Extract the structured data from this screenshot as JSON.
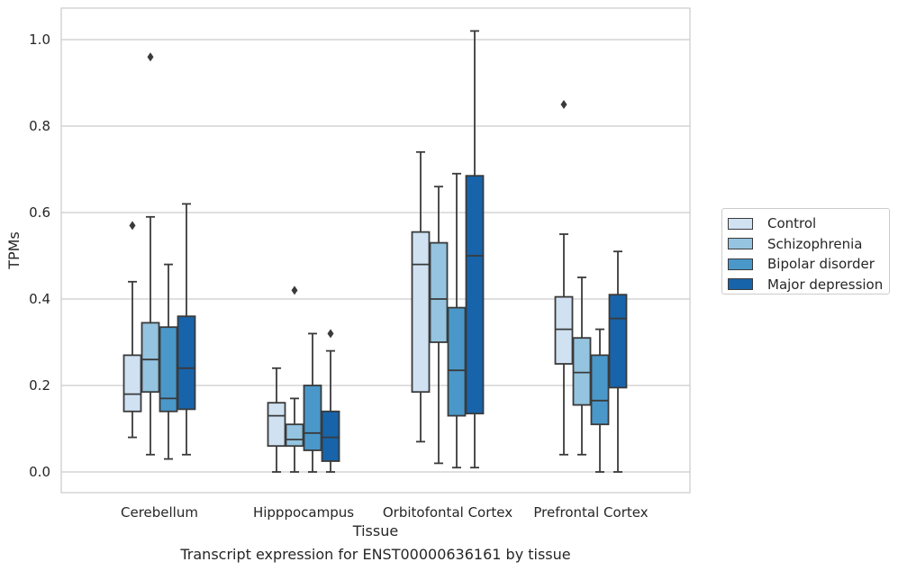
{
  "chart_data": {
    "type": "box",
    "caption": "Transcript expression for ENST00000636161 by tissue",
    "xlabel": "Tissue",
    "ylabel": "TPMs",
    "ylim": [
      -0.05,
      1.07
    ],
    "yticks": [
      "0.0",
      "0.2",
      "0.4",
      "0.6",
      "0.8",
      "1.0"
    ],
    "grid": true,
    "legend_position": "right",
    "categories": [
      "Cerebellum",
      "Hipppocampus",
      "Orbitofontal Cortex",
      "Prefrontal Cortex"
    ],
    "series": [
      {
        "name": "Control",
        "color": "#d0e1f2",
        "boxes": [
          {
            "min": 0.08,
            "q1": 0.14,
            "median": 0.18,
            "q3": 0.27,
            "max": 0.44,
            "outliers": [
              0.57
            ]
          },
          {
            "min": 0.0,
            "q1": 0.06,
            "median": 0.13,
            "q3": 0.16,
            "max": 0.24,
            "outliers": []
          },
          {
            "min": 0.07,
            "q1": 0.185,
            "median": 0.48,
            "q3": 0.555,
            "max": 0.74,
            "outliers": []
          },
          {
            "min": 0.04,
            "q1": 0.25,
            "median": 0.33,
            "q3": 0.405,
            "max": 0.55,
            "outliers": [
              0.85
            ]
          }
        ]
      },
      {
        "name": "Schizophrenia",
        "color": "#94c4df",
        "boxes": [
          {
            "min": 0.04,
            "q1": 0.185,
            "median": 0.26,
            "q3": 0.345,
            "max": 0.59,
            "outliers": [
              0.96
            ]
          },
          {
            "min": 0.0,
            "q1": 0.06,
            "median": 0.075,
            "q3": 0.11,
            "max": 0.17,
            "outliers": [
              0.42
            ]
          },
          {
            "min": 0.02,
            "q1": 0.3,
            "median": 0.4,
            "q3": 0.53,
            "max": 0.66,
            "outliers": []
          },
          {
            "min": 0.04,
            "q1": 0.155,
            "median": 0.23,
            "q3": 0.31,
            "max": 0.45,
            "outliers": []
          }
        ]
      },
      {
        "name": "Bipolar disorder",
        "color": "#4a98c9",
        "boxes": [
          {
            "min": 0.03,
            "q1": 0.14,
            "median": 0.17,
            "q3": 0.335,
            "max": 0.48,
            "outliers": []
          },
          {
            "min": 0.0,
            "q1": 0.05,
            "median": 0.09,
            "q3": 0.2,
            "max": 0.32,
            "outliers": []
          },
          {
            "min": 0.01,
            "q1": 0.13,
            "median": 0.235,
            "q3": 0.38,
            "max": 0.69,
            "outliers": []
          },
          {
            "min": 0.0,
            "q1": 0.11,
            "median": 0.165,
            "q3": 0.27,
            "max": 0.33,
            "outliers": []
          }
        ]
      },
      {
        "name": "Major depression",
        "color": "#1764ab",
        "boxes": [
          {
            "min": 0.04,
            "q1": 0.145,
            "median": 0.24,
            "q3": 0.36,
            "max": 0.62,
            "outliers": []
          },
          {
            "min": 0.0,
            "q1": 0.025,
            "median": 0.08,
            "q3": 0.14,
            "max": 0.28,
            "outliers": [
              0.32
            ]
          },
          {
            "min": 0.01,
            "q1": 0.135,
            "median": 0.5,
            "q3": 0.685,
            "max": 1.02,
            "outliers": []
          },
          {
            "min": 0.0,
            "q1": 0.195,
            "median": 0.355,
            "q3": 0.41,
            "max": 0.51,
            "outliers": []
          }
        ]
      }
    ]
  }
}
